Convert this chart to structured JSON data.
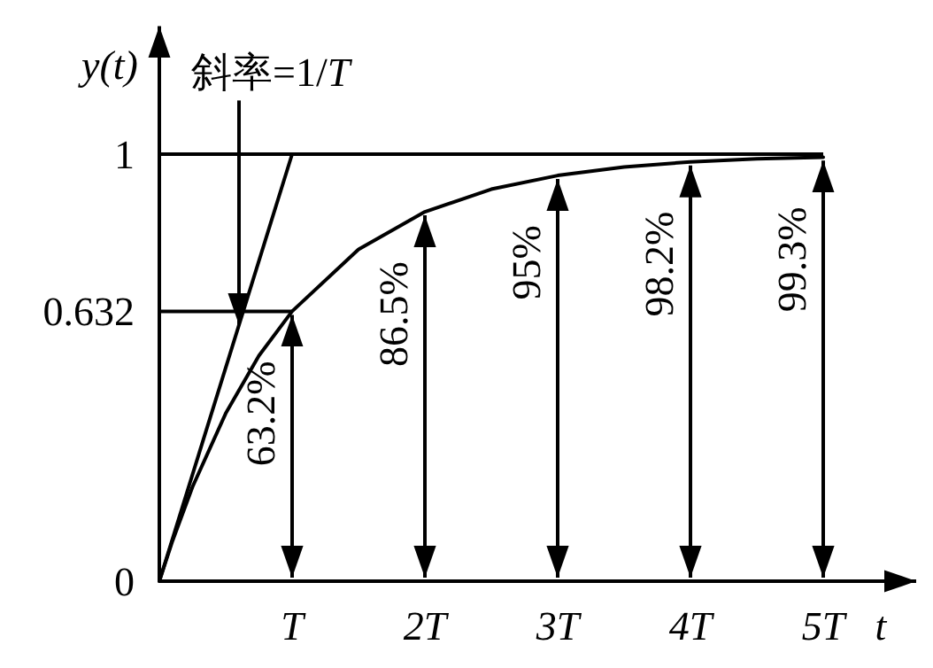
{
  "chart_data": {
    "type": "line",
    "xlabel": "t",
    "ylabel": "y(t)",
    "x": [
      0,
      0.1,
      0.25,
      0.5,
      0.75,
      1,
      1.5,
      2,
      2.5,
      3,
      3.5,
      4,
      4.5,
      5
    ],
    "series": [
      {
        "values": [
          0,
          0.095,
          0.221,
          0.393,
          0.528,
          0.632,
          0.777,
          0.865,
          0.918,
          0.95,
          0.97,
          0.982,
          0.989,
          0.993
        ],
        "color": "#000000"
      },
      {
        "type": "line",
        "x": [
          0,
          1
        ],
        "values": [
          0,
          1
        ],
        "color": "#000000"
      }
    ],
    "xlim": [
      0,
      5.7
    ],
    "ylim": [
      0,
      1.3
    ],
    "xticks": [
      {
        "value": 1,
        "label": "T"
      },
      {
        "value": 2,
        "label": "2T"
      },
      {
        "value": 3,
        "label": "3T"
      },
      {
        "value": 4,
        "label": "4T"
      },
      {
        "value": 5,
        "label": "5T"
      }
    ],
    "yticks": [
      0,
      0.632,
      1
    ],
    "grid": true,
    "annotations": [
      {
        "text": "斜率=1/*T*",
        "x": 0.6,
        "y": 0.6
      },
      {
        "text": "63.2%",
        "x": 1,
        "y": 0.632
      },
      {
        "text": "86.5%",
        "x": 2,
        "y": 0.865
      },
      {
        "text": "95%",
        "x": 3,
        "y": 0.95
      },
      {
        "text": "98.2%",
        "x": 4,
        "y": 0.982
      },
      {
        "text": "99.3%",
        "x": 5,
        "y": 0.993
      }
    ],
    "marker": "none",
    "line_style": "solid"
  }
}
